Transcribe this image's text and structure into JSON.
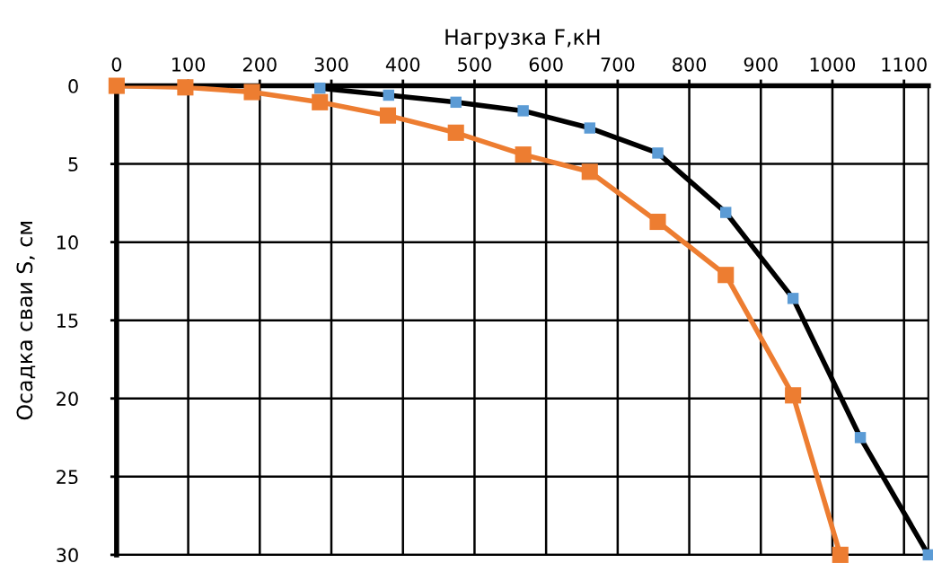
{
  "chart_data": {
    "type": "line",
    "xlabel": "Нагрузка F,кН",
    "ylabel": "Осадка сваи S, см",
    "xlim": [
      0,
      1134
    ],
    "xticks": [
      0,
      100,
      200,
      300,
      400,
      500,
      600,
      700,
      800,
      900,
      1000,
      1100
    ],
    "ylim": [
      30,
      0
    ],
    "yticks": [
      0,
      5,
      10,
      15,
      20,
      25,
      30
    ],
    "grid": true,
    "legend": false,
    "marker": "square",
    "line_style": "solid",
    "series": [
      {
        "color": "#000000",
        "colors": [
          "#5b9bd5",
          "#5b9bd5",
          "#5b9bd5",
          "#5b9bd5",
          "#5b9bd5",
          "#5b9bd5",
          "#5b9bd5",
          "#5b9bd5",
          "#5b9bd5",
          "#5b9bd5"
        ],
        "x": [
          284,
          380,
          474,
          568,
          661,
          756,
          851,
          945,
          1039,
          1134
        ],
        "values": [
          0.15,
          0.6,
          1.05,
          1.6,
          2.7,
          4.3,
          8.1,
          13.6,
          22.5,
          30
        ]
      },
      {
        "color": "#ed7d31",
        "x": [
          0,
          96,
          189,
          284,
          379,
          474,
          568,
          661,
          756,
          851,
          945,
          1011
        ],
        "values": [
          0,
          0.1,
          0.4,
          1.05,
          1.9,
          3.0,
          4.4,
          5.5,
          8.7,
          12.1,
          19.8,
          30
        ]
      }
    ]
  }
}
